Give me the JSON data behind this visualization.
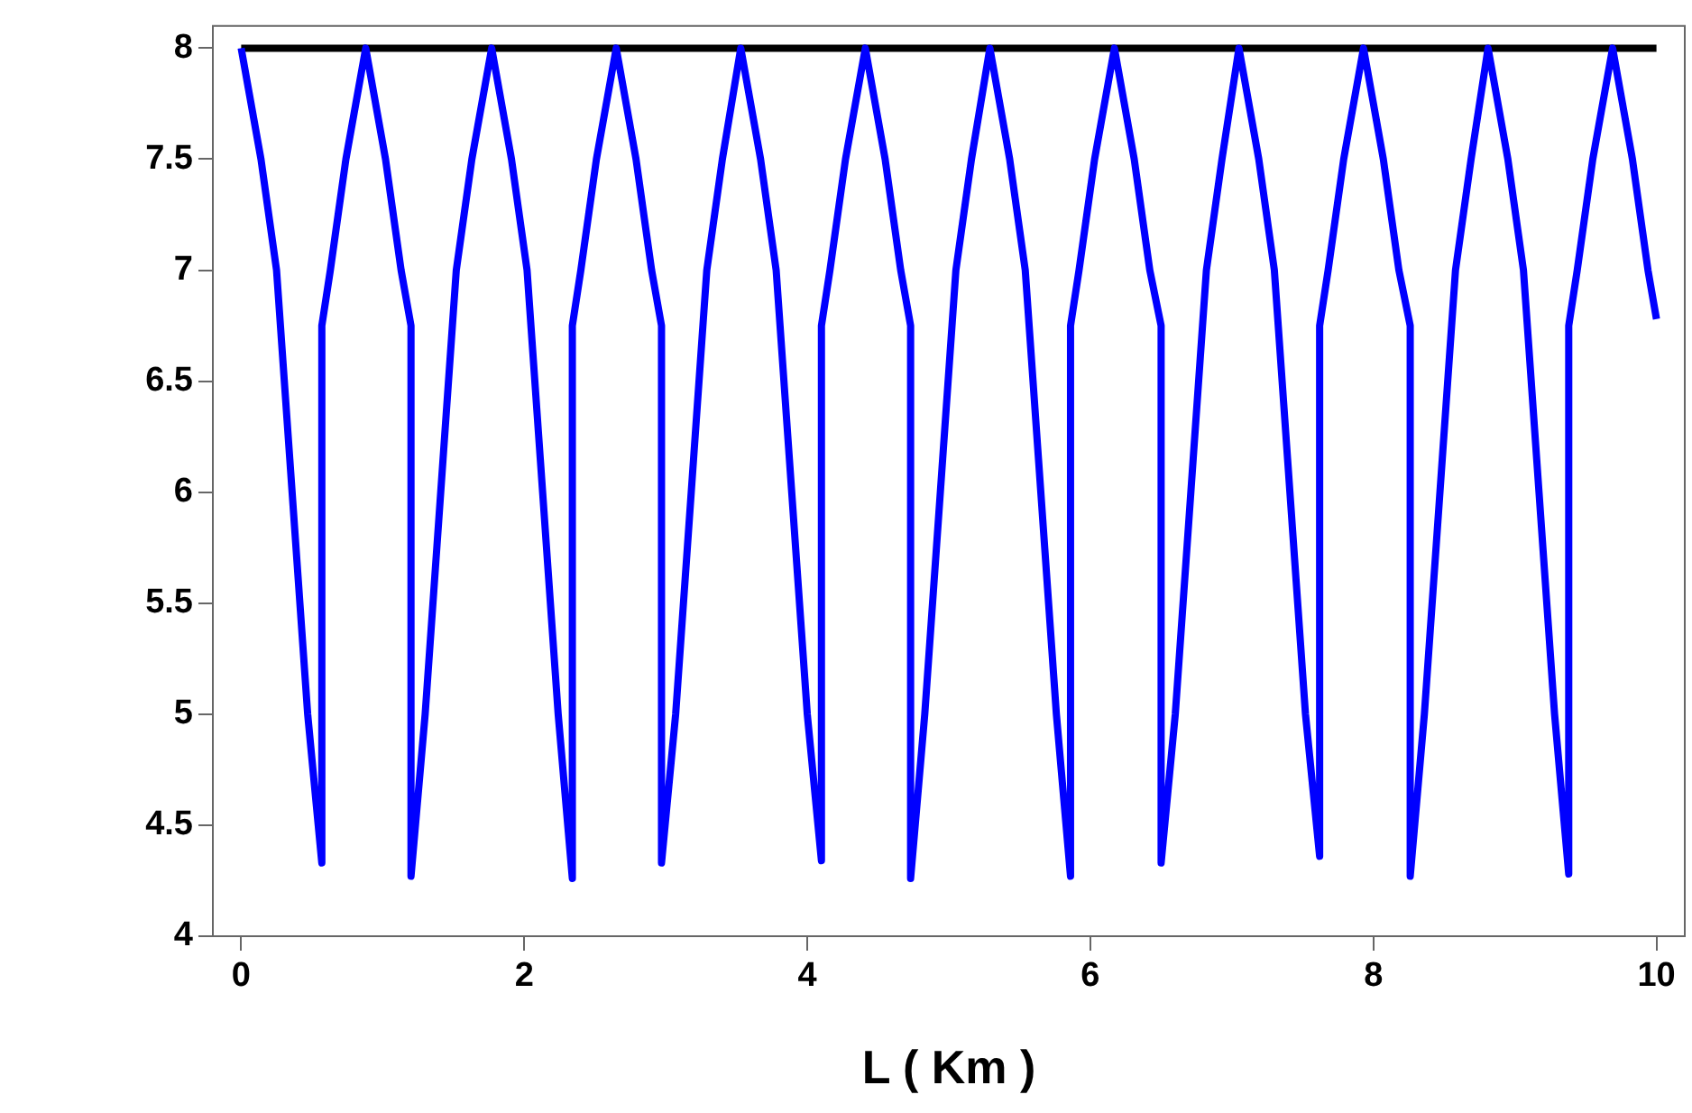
{
  "chart_data": {
    "type": "line",
    "xlabel": "L ( Km )",
    "xlim": [
      -0.2,
      10.2
    ],
    "ylim": [
      4,
      8.1
    ],
    "xticks": [
      0,
      2,
      4,
      6,
      8,
      10
    ],
    "yticks": [
      4,
      4.5,
      5,
      5.5,
      6,
      6.5,
      7,
      7.5,
      8
    ],
    "grid": false,
    "legend": false,
    "marker": "none",
    "line_style": "solid",
    "series": [
      {
        "color": "#0000ff",
        "x": [
          0,
          0.14,
          0.25,
          0.36,
          0.47,
          0.57,
          0.57,
          0.63,
          0.74,
          0.88,
          1.02,
          1.13,
          1.2,
          1.2,
          1.3,
          1.41,
          1.52,
          1.63,
          1.77,
          1.91,
          2.02,
          2.13,
          2.24,
          2.34,
          2.34,
          2.4,
          2.51,
          2.65,
          2.79,
          2.9,
          2.97,
          2.97,
          3.07,
          3.18,
          3.29,
          3.4,
          3.53,
          3.67,
          3.78,
          3.89,
          4,
          4.1,
          4.1,
          4.16,
          4.27,
          4.41,
          4.55,
          4.66,
          4.73,
          4.73,
          4.83,
          4.94,
          5.05,
          5.16,
          5.29,
          5.43,
          5.54,
          5.65,
          5.76,
          5.86,
          5.86,
          5.92,
          6.03,
          6.17,
          6.31,
          6.42,
          6.5,
          6.5,
          6.6,
          6.71,
          6.82,
          6.93,
          7.05,
          7.19,
          7.3,
          7.41,
          7.52,
          7.62,
          7.62,
          7.68,
          7.79,
          7.93,
          8.07,
          8.18,
          8.26,
          8.26,
          8.36,
          8.47,
          8.58,
          8.69,
          8.81,
          8.95,
          9.06,
          9.17,
          9.28,
          9.38,
          9.38,
          9.44,
          9.55,
          9.69,
          9.83,
          9.94,
          10
        ],
        "values": [
          8,
          7.5,
          7,
          6,
          5,
          4.33,
          6.75,
          7,
          7.5,
          8,
          7.5,
          7,
          6.75,
          4.27,
          5,
          6,
          7,
          7.5,
          8,
          7.5,
          7,
          6,
          5,
          4.26,
          6.75,
          7,
          7.5,
          8,
          7.5,
          7,
          6.75,
          4.33,
          5,
          6,
          7,
          7.5,
          8,
          7.5,
          7,
          6,
          5,
          4.34,
          6.75,
          7,
          7.5,
          8,
          7.5,
          7,
          6.75,
          4.26,
          5,
          6,
          7,
          7.5,
          8,
          7.5,
          7,
          6,
          5,
          4.27,
          6.75,
          7,
          7.5,
          8,
          7.5,
          7,
          6.75,
          4.33,
          5,
          6,
          7,
          7.5,
          8,
          7.5,
          7,
          6,
          5,
          4.36,
          6.75,
          7,
          7.5,
          8,
          7.5,
          7,
          6.75,
          4.27,
          5,
          6,
          7,
          7.5,
          8,
          7.5,
          7,
          6,
          5,
          4.28,
          6.75,
          7,
          7.5,
          8,
          7.5,
          7,
          6.78
        ]
      },
      {
        "color": "#000000",
        "x": [
          0,
          10
        ],
        "values": [
          8,
          8
        ]
      }
    ]
  }
}
